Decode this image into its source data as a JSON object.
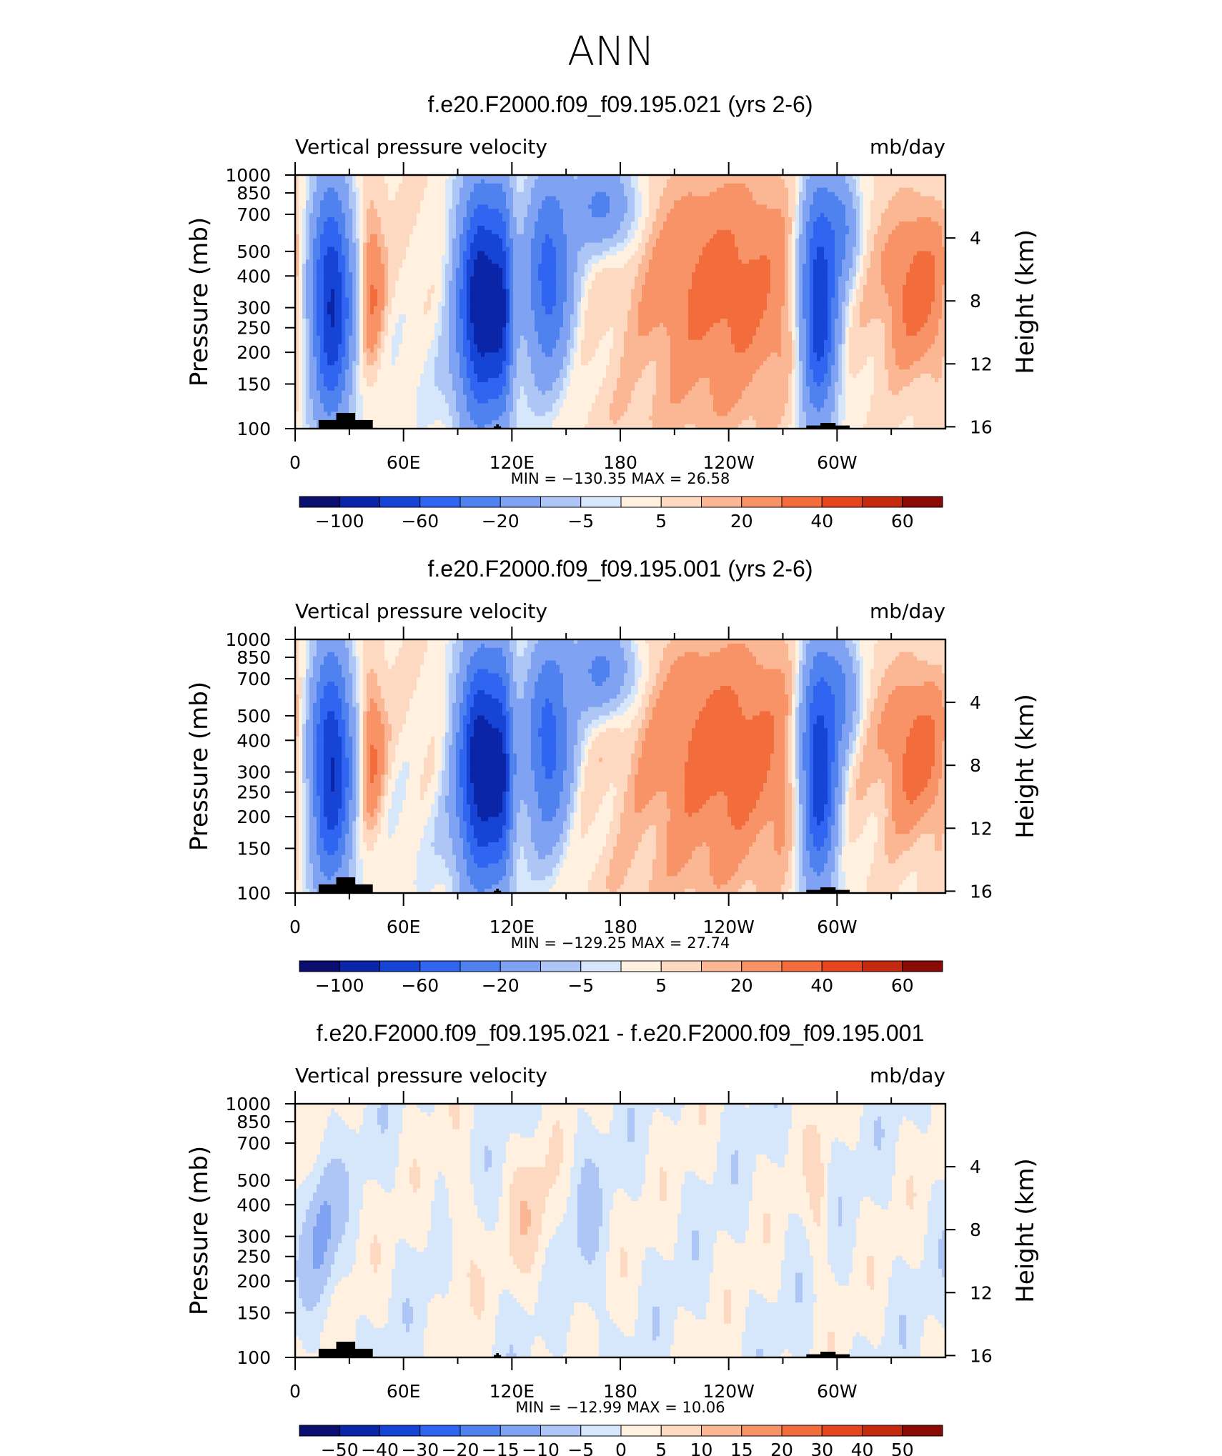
{
  "figure_title": "ANN",
  "colormaps": {
    "full": [
      "#0a0e6e",
      "#0b25a8",
      "#1645d6",
      "#2f65f0",
      "#4f82ee",
      "#7fa2f2",
      "#aec6f6",
      "#d6e6fb",
      "#fff0df",
      "#fdd9c1",
      "#fbb694",
      "#f79367",
      "#f36d3c",
      "#e54620",
      "#c32a10",
      "#8a0a06"
    ],
    "diff": [
      "#0a0e6e",
      "#0b25a8",
      "#1645d6",
      "#2f65f0",
      "#4f82ee",
      "#7fa2f2",
      "#aec6f6",
      "#d6e6fb",
      "#fff0df",
      "#fdd9c1",
      "#fbb694",
      "#f79367",
      "#f36d3c",
      "#e54620",
      "#c32a10",
      "#8a0a06"
    ]
  },
  "panels": [
    {
      "title": "f.e20.F2000.f09_f09.195.021 (yrs 2-6)",
      "variable": "Vertical pressure velocity",
      "units": "mb/day",
      "stats": {
        "min_label": "MIN",
        "min": "−130.35",
        "max_label": "MAX",
        "max": "26.58"
      },
      "colorbar_labels": [
        "−100",
        "−60",
        "−20",
        "−5",
        "5",
        "20",
        "40",
        "60"
      ],
      "colormap": "full",
      "field": "full1"
    },
    {
      "title": "f.e20.F2000.f09_f09.195.001 (yrs 2-6)",
      "variable": "Vertical pressure velocity",
      "units": "mb/day",
      "stats": {
        "min_label": "MIN",
        "min": "−129.25",
        "max_label": "MAX",
        "max": "27.74"
      },
      "colorbar_labels": [
        "−100",
        "−60",
        "−20",
        "−5",
        "5",
        "20",
        "40",
        "60"
      ],
      "colormap": "full",
      "field": "full2"
    },
    {
      "title": "f.e20.F2000.f09_f09.195.021 - f.e20.F2000.f09_f09.195.001",
      "variable": "Vertical pressure velocity",
      "units": "mb/day",
      "stats": {
        "min_label": "MIN",
        "min": "−12.99",
        "max_label": "MAX",
        "max": "10.06"
      },
      "colorbar_labels": [
        "−50",
        "−40",
        "−30",
        "−20",
        "−15",
        "−10",
        "−5",
        "0",
        "5",
        "10",
        "15",
        "20",
        "30",
        "40",
        "50"
      ],
      "colormap": "diff",
      "field": "diff"
    }
  ],
  "axes": {
    "y_left_label": "Pressure (mb)",
    "y_right_label": "Height (km)",
    "pressure_ticks": [
      "100",
      "150",
      "200",
      "250",
      "300",
      "400",
      "500",
      "700",
      "850",
      "1000"
    ],
    "height_ticks": [
      "16",
      "12",
      "8",
      "4"
    ],
    "x_ticks": [
      "0",
      "60E",
      "120E",
      "180",
      "120W",
      "60W"
    ]
  },
  "chart_data": [
    {
      "type": "heatmap",
      "title": "f.e20.F2000.f09_f09.195.021 (yrs 2-6)",
      "variable": "Vertical pressure velocity",
      "units": "mb/day",
      "x": "longitude",
      "x_ticks": [
        "0",
        "60E",
        "120E",
        "180",
        "120W",
        "60W"
      ],
      "y": "pressure",
      "ylabel": "Pressure (mb)",
      "ylim": [
        1000,
        100
      ],
      "y2label": "Height (km)",
      "features": [
        {
          "lon": 20,
          "sign": "negative",
          "approx_value": -100
        },
        {
          "lon": 42,
          "sign": "positive",
          "approx_value": 20
        },
        {
          "lon": 105,
          "sign": "negative",
          "approx_value": -120
        },
        {
          "lon": 140,
          "sign": "negative",
          "approx_value": -60
        },
        {
          "lon": 240,
          "sign": "positive",
          "approx_value": 25
        },
        {
          "lon": 290,
          "sign": "negative",
          "approx_value": -100
        },
        {
          "lon": 345,
          "sign": "positive",
          "approx_value": 25
        }
      ],
      "min": -130.35,
      "max": 26.58
    },
    {
      "type": "heatmap",
      "title": "f.e20.F2000.f09_f09.195.001 (yrs 2-6)",
      "variable": "Vertical pressure velocity",
      "units": "mb/day",
      "x": "longitude",
      "x_ticks": [
        "0",
        "60E",
        "120E",
        "180",
        "120W",
        "60W"
      ],
      "y": "pressure",
      "ylabel": "Pressure (mb)",
      "ylim": [
        1000,
        100
      ],
      "y2label": "Height (km)",
      "features": [
        {
          "lon": 20,
          "sign": "negative",
          "approx_value": -100
        },
        {
          "lon": 42,
          "sign": "positive",
          "approx_value": 20
        },
        {
          "lon": 105,
          "sign": "negative",
          "approx_value": -115
        },
        {
          "lon": 140,
          "sign": "negative",
          "approx_value": -70
        },
        {
          "lon": 238,
          "sign": "positive",
          "approx_value": 27
        },
        {
          "lon": 290,
          "sign": "negative",
          "approx_value": -100
        },
        {
          "lon": 345,
          "sign": "positive",
          "approx_value": 25
        }
      ],
      "min": -129.25,
      "max": 27.74
    },
    {
      "type": "heatmap",
      "title": "f.e20.F2000.f09_f09.195.021 - f.e20.F2000.f09_f09.195.001",
      "variable": "Vertical pressure velocity",
      "units": "mb/day",
      "x": "longitude",
      "x_ticks": [
        "0",
        "60E",
        "120E",
        "180",
        "120W",
        "60W"
      ],
      "y": "pressure",
      "ylabel": "Pressure (mb)",
      "ylim": [
        1000,
        100
      ],
      "y2label": "Height (km)",
      "features": [
        {
          "lon": 15,
          "sign": "negative",
          "approx_value": -10
        },
        {
          "lon": 90,
          "sign": "positive",
          "approx_value": 5
        },
        {
          "lon": 130,
          "sign": "positive",
          "approx_value": 5
        },
        {
          "lon": 160,
          "sign": "negative",
          "approx_value": -5
        },
        {
          "lon": 290,
          "sign": "positive",
          "approx_value": 5
        }
      ],
      "min": -12.99,
      "max": 10.06
    }
  ]
}
